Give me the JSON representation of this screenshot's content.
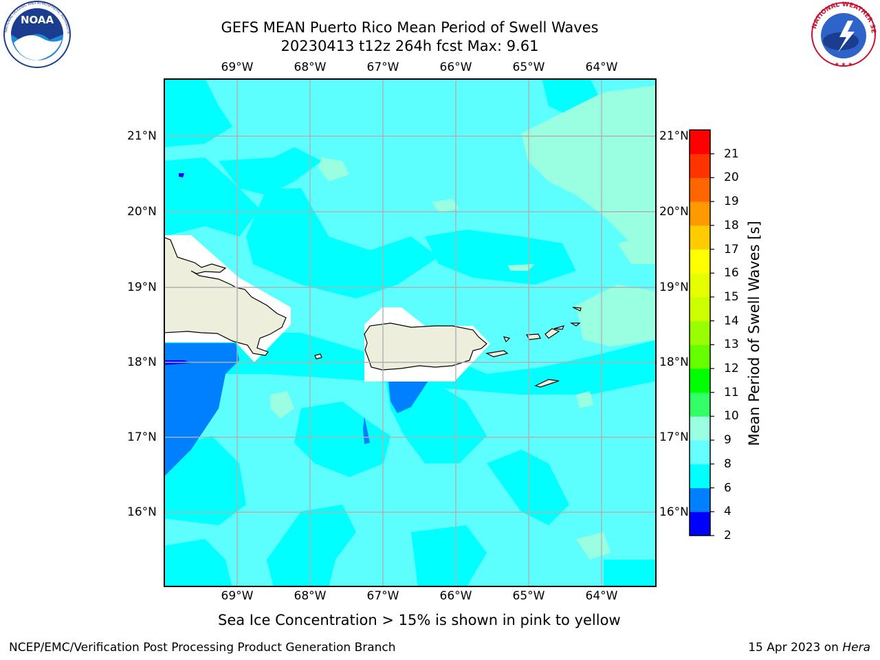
{
  "header": {
    "title_line1": "GEFS MEAN Puerto Rico Mean Period of Swell Waves",
    "title_line2": "20230413 t12z 264h fcst   Max: 9.61"
  },
  "logos": {
    "left": "NOAA",
    "left_ring_text": "NATIONAL OCEANIC AND ATMOSPHERIC ADMINISTRATION · U.S. DEPARTMENT OF COMMERCE",
    "right_ring_text": "NATIONAL WEATHER SERVICE"
  },
  "map": {
    "lon_labels": [
      "69°W",
      "68°W",
      "67°W",
      "66°W",
      "65°W",
      "64°W"
    ],
    "lat_labels": [
      "21°N",
      "20°N",
      "19°N",
      "18°N",
      "17°N",
      "16°N"
    ],
    "grid": true,
    "ocean_color": "#5cfffd",
    "land_color": "#eeeedc",
    "masked_color": "#ffffff"
  },
  "colorbar": {
    "label": "Mean Period of Swell Waves [s]",
    "ticks": [
      "2",
      "4",
      "6",
      "8",
      "9",
      "10",
      "11",
      "12",
      "13",
      "14",
      "15",
      "16",
      "17",
      "18",
      "19",
      "20",
      "21"
    ],
    "bins": [
      {
        "from": 2,
        "to": 4,
        "color": "#0000ff"
      },
      {
        "from": 4,
        "to": 6,
        "color": "#0080ff"
      },
      {
        "from": 6,
        "to": 8,
        "color": "#00ffff"
      },
      {
        "from": 8,
        "to": 9,
        "color": "#66ffff"
      },
      {
        "from": 9,
        "to": 10,
        "color": "#99ffe0"
      },
      {
        "from": 10,
        "to": 11,
        "color": "#33ff66"
      },
      {
        "from": 11,
        "to": 12,
        "color": "#00ff00"
      },
      {
        "from": 12,
        "to": 13,
        "color": "#66ff00"
      },
      {
        "from": 13,
        "to": 14,
        "color": "#99ff00"
      },
      {
        "from": 14,
        "to": 15,
        "color": "#ccff00"
      },
      {
        "from": 15,
        "to": 16,
        "color": "#e6ff00"
      },
      {
        "from": 16,
        "to": 17,
        "color": "#ffff00"
      },
      {
        "from": 17,
        "to": 18,
        "color": "#ffcc00"
      },
      {
        "from": 18,
        "to": 19,
        "color": "#ff9900"
      },
      {
        "from": 19,
        "to": 20,
        "color": "#ff6600"
      },
      {
        "from": 20,
        "to": 21,
        "color": "#ff3300"
      },
      {
        "from": 21,
        "to": 22,
        "color": "#ff0000"
      }
    ]
  },
  "caption": "Sea Ice Concentration > 15% is shown in pink to yellow",
  "footer": {
    "left": "NCEP/EMC/Verification Post Processing Product Generation Branch",
    "right_date": "15 Apr 2023 on ",
    "right_host": "Hera"
  }
}
